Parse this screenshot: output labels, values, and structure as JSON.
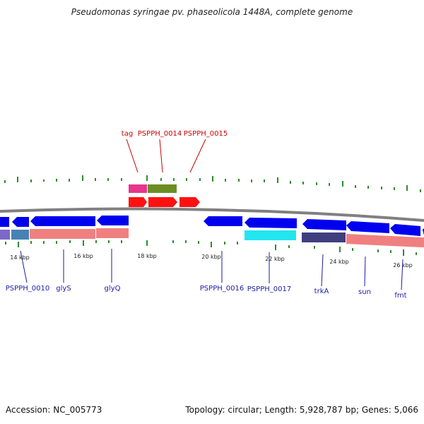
{
  "title": "Pseudomonas syringae pv. phaseolicola 1448A, complete genome",
  "footer": {
    "accession": "Accession: NC_005773",
    "stats": "Topology: circular; Length: 5,928,787 bp; Genes: 5,066"
  },
  "colors": {
    "backbone": "#808080",
    "tick": "#2e8b2e",
    "cds": "#0000ee",
    "rna": "#ff1111",
    "label_blue": "#1a1aa8",
    "label_red": "#cc0000",
    "tag_magenta": "#e8358f",
    "olive": "#6b8e23",
    "cyan": "#22e5ef",
    "salmon": "#f08080",
    "navy_purple": "#3f3f7f",
    "steel": "#4682b4",
    "violet": "#7b68c8"
  },
  "scale_labels": [
    "14 kbp",
    "16 kbp",
    "18 kbp",
    "20 kbp",
    "22 kbp",
    "24 kbp",
    "26 kbp"
  ],
  "gene_labels_top": [
    "tag",
    "PSPPH_0014",
    "PSPPH_0015"
  ],
  "gene_labels_bottom": [
    "PSPPH_0010",
    "glyS",
    "glyQ",
    "PSPPH_0016",
    "PSPPH_0017",
    "trkA",
    "sun",
    "fmt"
  ]
}
